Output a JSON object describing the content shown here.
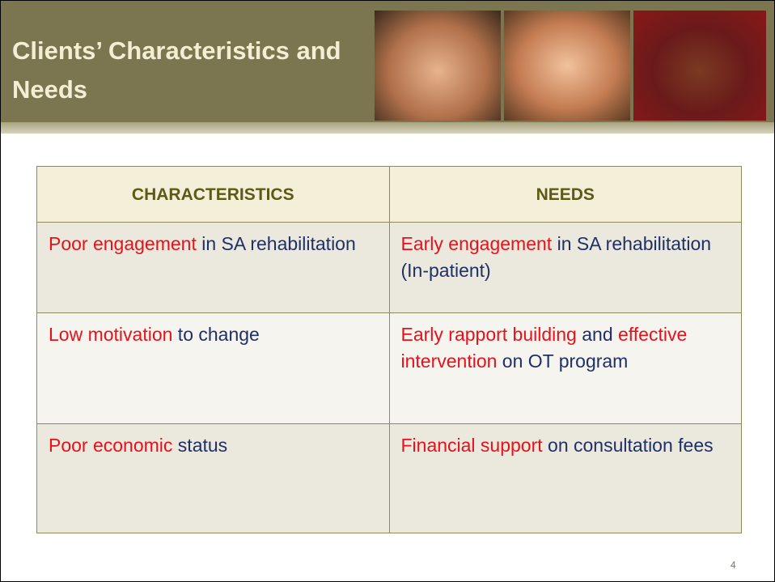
{
  "header": {
    "title": "Clients’ Characteristics and Needs"
  },
  "table": {
    "columns": [
      "CHARACTERISTICS",
      "NEEDS"
    ],
    "rows": [
      [
        [
          {
            "text": "Poor engagement",
            "color": "#e8111b"
          },
          {
            "text": " in SA rehabilitation",
            "color": "#1f3068"
          }
        ],
        [
          {
            "text": "Early engagement",
            "color": "#e8111b"
          },
          {
            "text": " in SA rehabilitation (In-patient)",
            "color": "#1f3068"
          }
        ]
      ],
      [
        [
          {
            "text": "Low motivation",
            "color": "#e8111b"
          },
          {
            "text": " to change",
            "color": "#1f3068"
          }
        ],
        [
          {
            "text": "Early rapport building",
            "color": "#e8111b"
          },
          {
            "text": " and ",
            "color": "#1f3068"
          },
          {
            "text": "effective intervention",
            "color": "#e8111b"
          },
          {
            "text": " on OT program",
            "color": "#1f3068"
          }
        ]
      ],
      [
        [
          {
            "text": "Poor economic",
            "color": "#e8111b"
          },
          {
            "text": " status",
            "color": "#1f3068"
          }
        ],
        [
          {
            "text": "Financial support",
            "color": "#e8111b"
          },
          {
            "text": " on consultation fees",
            "color": "#1f3068"
          }
        ]
      ]
    ]
  },
  "page_number": "4"
}
